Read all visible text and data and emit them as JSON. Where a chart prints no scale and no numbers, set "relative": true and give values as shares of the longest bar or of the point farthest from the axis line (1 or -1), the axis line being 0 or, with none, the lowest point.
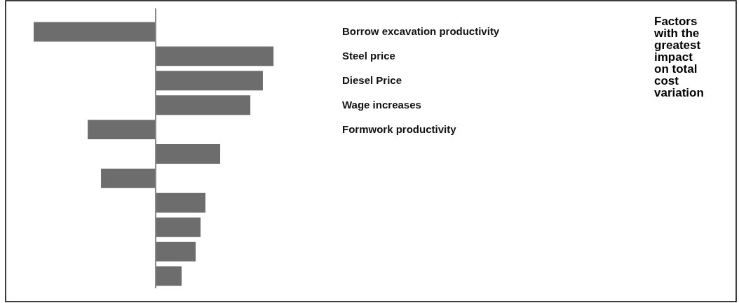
{
  "chart_data": {
    "type": "bar",
    "orientation": "horizontal",
    "relative": true,
    "categories": [
      "Borrow excavation productivity",
      "Steel price",
      "Diesel Price",
      "Wage increases",
      "Formwork productivity",
      null,
      null,
      null,
      null,
      null,
      null
    ],
    "values": [
      -1,
      0.966,
      0.879,
      0.776,
      -0.557,
      0.529,
      -0.448,
      0.408,
      0.368,
      0.328,
      0.213
    ],
    "color": "#6d6d6d",
    "annotations": [
      "Factors with the greatest impact on total cost variation"
    ]
  }
}
